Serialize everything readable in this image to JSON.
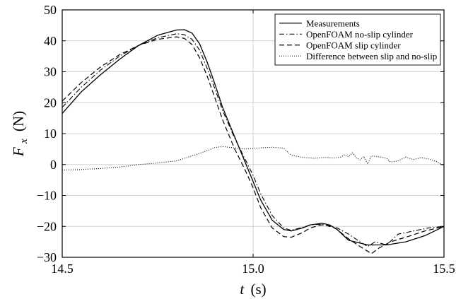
{
  "chart_data": {
    "type": "line",
    "xlabel_italic": "t",
    "xlabel_unit": "(s)",
    "ylabel_main": "F",
    "ylabel_sub": "x",
    "ylabel_unit": "(N)",
    "xlim": [
      14.5,
      15.5
    ],
    "ylim": [
      -30,
      50
    ],
    "xticks": [
      14.5,
      15.0,
      15.5
    ],
    "xtick_labels": [
      "14.5",
      "15.0",
      "15.5"
    ],
    "yticks": [
      -30,
      -20,
      -10,
      0,
      10,
      20,
      30,
      40,
      50
    ],
    "ytick_labels": [
      "−30",
      "−20",
      "−10",
      "0",
      "10",
      "20",
      "30",
      "40",
      "50"
    ],
    "grid": true,
    "legend_position": "top-right",
    "series": [
      {
        "name": "Measurements",
        "style": "solid",
        "x": [
          14.5,
          14.55,
          14.6,
          14.65,
          14.7,
          14.75,
          14.8,
          14.82,
          14.84,
          14.86,
          14.88,
          14.9,
          14.92,
          14.95,
          14.98,
          15.0,
          15.02,
          15.05,
          15.08,
          15.1,
          15.13,
          15.15,
          15.18,
          15.2,
          15.22,
          15.25,
          15.3,
          15.35,
          15.4,
          15.45,
          15.5
        ],
        "y": [
          16.5,
          23.5,
          29.0,
          34.0,
          38.5,
          41.8,
          43.5,
          43.6,
          42.5,
          39.0,
          33.0,
          26.0,
          18.5,
          9.5,
          0.5,
          -5.5,
          -11.5,
          -18.0,
          -21.0,
          -21.5,
          -20.5,
          -19.5,
          -19.0,
          -19.5,
          -21.0,
          -24.5,
          -26.0,
          -26.0,
          -25.0,
          -23.0,
          -20.0
        ]
      },
      {
        "name": "OpenFOAM no-slip cylinder",
        "style": "dash-dot",
        "x": [
          14.5,
          14.55,
          14.6,
          14.65,
          14.7,
          14.75,
          14.8,
          14.82,
          14.84,
          14.86,
          14.88,
          14.9,
          14.92,
          14.95,
          14.98,
          15.0,
          15.02,
          15.05,
          15.08,
          15.1,
          15.13,
          15.15,
          15.18,
          15.2,
          15.22,
          15.25,
          15.28,
          15.3,
          15.32,
          15.35,
          15.38,
          15.42,
          15.46,
          15.5
        ],
        "y": [
          18.5,
          25.0,
          30.5,
          35.0,
          38.5,
          41.0,
          42.3,
          42.0,
          40.5,
          37.0,
          31.0,
          24.5,
          17.5,
          9.0,
          1.5,
          -3.5,
          -9.5,
          -16.5,
          -20.5,
          -21.3,
          -20.3,
          -19.5,
          -19.3,
          -20.0,
          -20.5,
          -22.5,
          -25.0,
          -26.5,
          -25.0,
          -26.0,
          -22.5,
          -21.5,
          -20.5,
          -20.0
        ]
      },
      {
        "name": "OpenFOAM slip cylinder",
        "style": "dashed",
        "x": [
          14.5,
          14.55,
          14.6,
          14.65,
          14.7,
          14.75,
          14.8,
          14.82,
          14.84,
          14.86,
          14.88,
          14.9,
          14.92,
          14.95,
          14.98,
          15.0,
          15.02,
          15.05,
          15.08,
          15.1,
          15.13,
          15.15,
          15.18,
          15.2,
          15.22,
          15.25,
          15.28,
          15.31,
          15.33,
          15.36,
          15.4,
          15.45,
          15.5
        ],
        "y": [
          20.5,
          26.5,
          31.5,
          35.5,
          38.5,
          40.5,
          41.3,
          40.8,
          38.8,
          34.5,
          28.5,
          21.5,
          14.5,
          5.5,
          -2.0,
          -7.5,
          -14.0,
          -20.5,
          -23.3,
          -23.5,
          -22.0,
          -20.5,
          -19.5,
          -19.8,
          -21.0,
          -24.0,
          -26.5,
          -28.8,
          -27.0,
          -25.0,
          -23.5,
          -21.5,
          -20.0
        ]
      },
      {
        "name": "Difference between slip and no-slip",
        "style": "dotted",
        "x": [
          14.5,
          14.55,
          14.6,
          14.65,
          14.7,
          14.75,
          14.8,
          14.85,
          14.88,
          14.9,
          14.92,
          14.95,
          14.98,
          15.0,
          15.02,
          15.05,
          15.08,
          15.1,
          15.13,
          15.16,
          15.19,
          15.21,
          15.23,
          15.24,
          15.25,
          15.26,
          15.27,
          15.28,
          15.29,
          15.3,
          15.31,
          15.33,
          15.35,
          15.36,
          15.38,
          15.4,
          15.42,
          15.44,
          15.46,
          15.48,
          15.5
        ],
        "y": [
          -1.8,
          -1.6,
          -1.3,
          -0.8,
          0.0,
          0.5,
          1.2,
          3.2,
          4.5,
          5.5,
          5.8,
          5.4,
          5.0,
          5.2,
          5.4,
          5.6,
          5.3,
          3.0,
          2.3,
          2.0,
          2.3,
          2.1,
          2.4,
          3.2,
          2.5,
          3.8,
          2.2,
          1.5,
          2.6,
          0.2,
          2.8,
          2.5,
          2.0,
          0.8,
          1.2,
          2.4,
          1.6,
          2.2,
          1.8,
          1.0,
          -0.5
        ]
      }
    ]
  }
}
